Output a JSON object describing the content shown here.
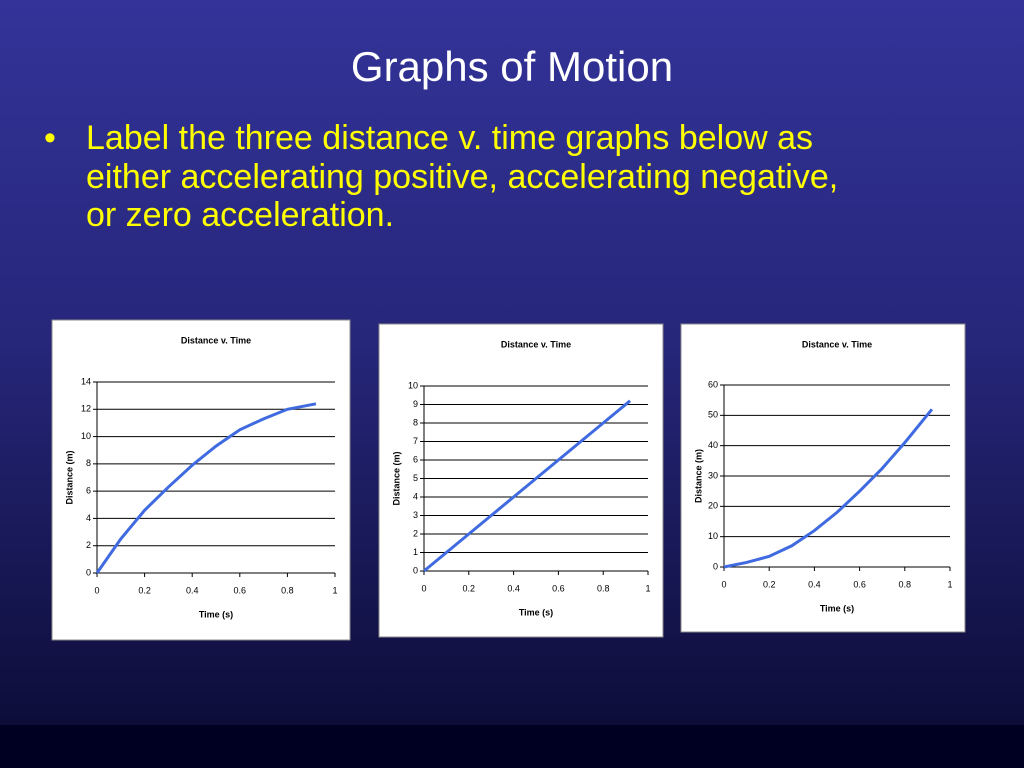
{
  "slide": {
    "title": "Graphs of Motion",
    "bullet": [
      "Label the three distance v. time graphs below as",
      "either accelerating positive, accelerating negative,",
      "or zero acceleration."
    ]
  },
  "chart_data": [
    {
      "type": "line",
      "title": "Distance v. Time",
      "x_label": "Time (s)",
      "y_label": "Distance (m)",
      "x": [
        0,
        0.1,
        0.2,
        0.3,
        0.4,
        0.5,
        0.6,
        0.7,
        0.8,
        0.92
      ],
      "values": [
        0,
        2.5,
        4.6,
        6.3,
        7.9,
        9.3,
        10.5,
        11.3,
        12.0,
        12.4
      ],
      "color": "#3f6ae0",
      "xlim": [
        0,
        1
      ],
      "xticks": [
        0,
        0.2,
        0.4,
        0.6,
        0.8,
        1
      ],
      "ylim": [
        0,
        14
      ],
      "yticks": [
        0,
        2,
        4,
        6,
        8,
        10,
        12,
        14
      ],
      "grid": true
    },
    {
      "type": "line",
      "title": "Distance v. Time",
      "x_label": "Time (s)",
      "y_label": "Distance (m)",
      "x": [
        0,
        0.1,
        0.2,
        0.3,
        0.4,
        0.5,
        0.6,
        0.7,
        0.8,
        0.92
      ],
      "values": [
        0,
        1,
        2,
        3,
        4,
        5,
        6,
        7,
        8,
        9.2
      ],
      "color": "#3f6ae0",
      "xlim": [
        0,
        1
      ],
      "xticks": [
        0,
        0.2,
        0.4,
        0.6,
        0.8,
        1
      ],
      "ylim": [
        0,
        10
      ],
      "yticks": [
        0,
        1,
        2,
        3,
        4,
        5,
        6,
        7,
        8,
        9,
        10
      ],
      "grid": true
    },
    {
      "type": "line",
      "title": "Distance v. Time",
      "x_label": "Time (s)",
      "y_label": "Distance (m)",
      "x": [
        0,
        0.1,
        0.2,
        0.3,
        0.4,
        0.5,
        0.6,
        0.7,
        0.8,
        0.92
      ],
      "values": [
        0,
        1.5,
        3.5,
        7,
        12,
        18,
        25,
        32.5,
        41,
        52
      ],
      "color": "#3f6ae0",
      "xlim": [
        0,
        1
      ],
      "xticks": [
        0,
        0.2,
        0.4,
        0.6,
        0.8,
        1
      ],
      "ylim": [
        0,
        60
      ],
      "yticks": [
        0,
        10,
        20,
        30,
        40,
        50,
        60
      ],
      "grid": true
    }
  ]
}
